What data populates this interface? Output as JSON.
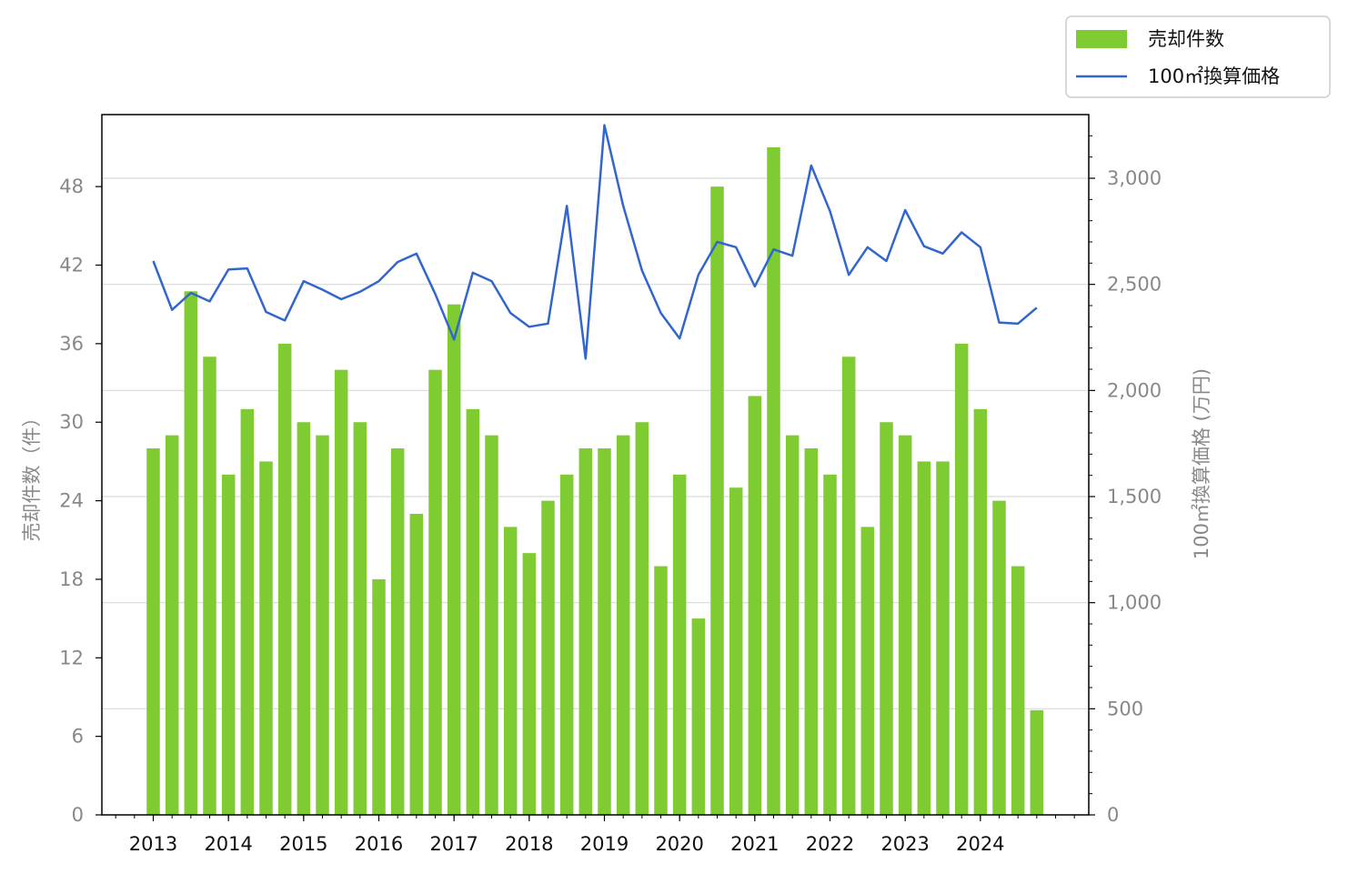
{
  "chart_data": {
    "type": "bar",
    "x_tick_labels": [
      "2013",
      "2014",
      "2015",
      "2016",
      "2017",
      "2018",
      "2019",
      "2020",
      "2021",
      "2022",
      "2023",
      "2024"
    ],
    "ylabel_left": "売却件数（件）",
    "ylabel_right": "100㎡換算価格 (万円)",
    "left_axis": {
      "ylim": [
        0,
        53.5
      ],
      "ticks": [
        0,
        6,
        12,
        18,
        24,
        30,
        36,
        42,
        48
      ],
      "tick_labels": [
        "0",
        "6",
        "12",
        "18",
        "24",
        "30",
        "36",
        "42",
        "48"
      ]
    },
    "right_axis": {
      "ylim": [
        0,
        3300
      ],
      "ticks": [
        0,
        500,
        1000,
        1500,
        2000,
        2500,
        3000
      ],
      "tick_labels": [
        "0",
        "500",
        "1,000",
        "1,500",
        "2,000",
        "2,500",
        "3,000"
      ]
    },
    "grid": "horizontal (right axis)",
    "legend_position": "top-right (outside)",
    "categories": [
      "2013Q1",
      "2013Q2",
      "2013Q3",
      "2013Q4",
      "2014Q1",
      "2014Q2",
      "2014Q3",
      "2014Q4",
      "2015Q1",
      "2015Q2",
      "2015Q3",
      "2015Q4",
      "2016Q1",
      "2016Q2",
      "2016Q3",
      "2016Q4",
      "2017Q1",
      "2017Q2",
      "2017Q3",
      "2017Q4",
      "2018Q1",
      "2018Q2",
      "2018Q3",
      "2018Q4",
      "2019Q1",
      "2019Q2",
      "2019Q3",
      "2019Q4",
      "2020Q1",
      "2020Q2",
      "2020Q3",
      "2020Q4",
      "2021Q1",
      "2021Q2",
      "2021Q3",
      "2021Q4",
      "2022Q1",
      "2022Q2",
      "2022Q3",
      "2022Q4",
      "2023Q1",
      "2023Q2",
      "2023Q3",
      "2023Q4",
      "2024Q1",
      "2024Q2",
      "2024Q3",
      "2024Q4"
    ],
    "series": [
      {
        "name": "売却件数",
        "type": "bar",
        "axis": "left",
        "color": "#7fcb32",
        "values": [
          28,
          29,
          40,
          35,
          26,
          31,
          27,
          36,
          30,
          29,
          34,
          30,
          18,
          28,
          23,
          34,
          39,
          31,
          29,
          22,
          20,
          24,
          26,
          28,
          28,
          29,
          30,
          19,
          26,
          15,
          48,
          25,
          32,
          51,
          29,
          28,
          26,
          35,
          22,
          30,
          29,
          27,
          27,
          36,
          31,
          24,
          19,
          8
        ]
      },
      {
        "name": "100㎡換算価格",
        "type": "line",
        "axis": "right",
        "color": "#3366cc",
        "values": [
          2610,
          2380,
          2460,
          2420,
          2570,
          2575,
          2370,
          2330,
          2515,
          2475,
          2430,
          2465,
          2515,
          2605,
          2645,
          2455,
          2240,
          2555,
          2515,
          2365,
          2300,
          2315,
          2870,
          2150,
          3250,
          2870,
          2565,
          2365,
          2245,
          2545,
          2700,
          2675,
          2490,
          2665,
          2635,
          3060,
          2845,
          2545,
          2675,
          2610,
          2850,
          2680,
          2645,
          2745,
          2675,
          2320,
          2315,
          2390
        ]
      }
    ]
  }
}
